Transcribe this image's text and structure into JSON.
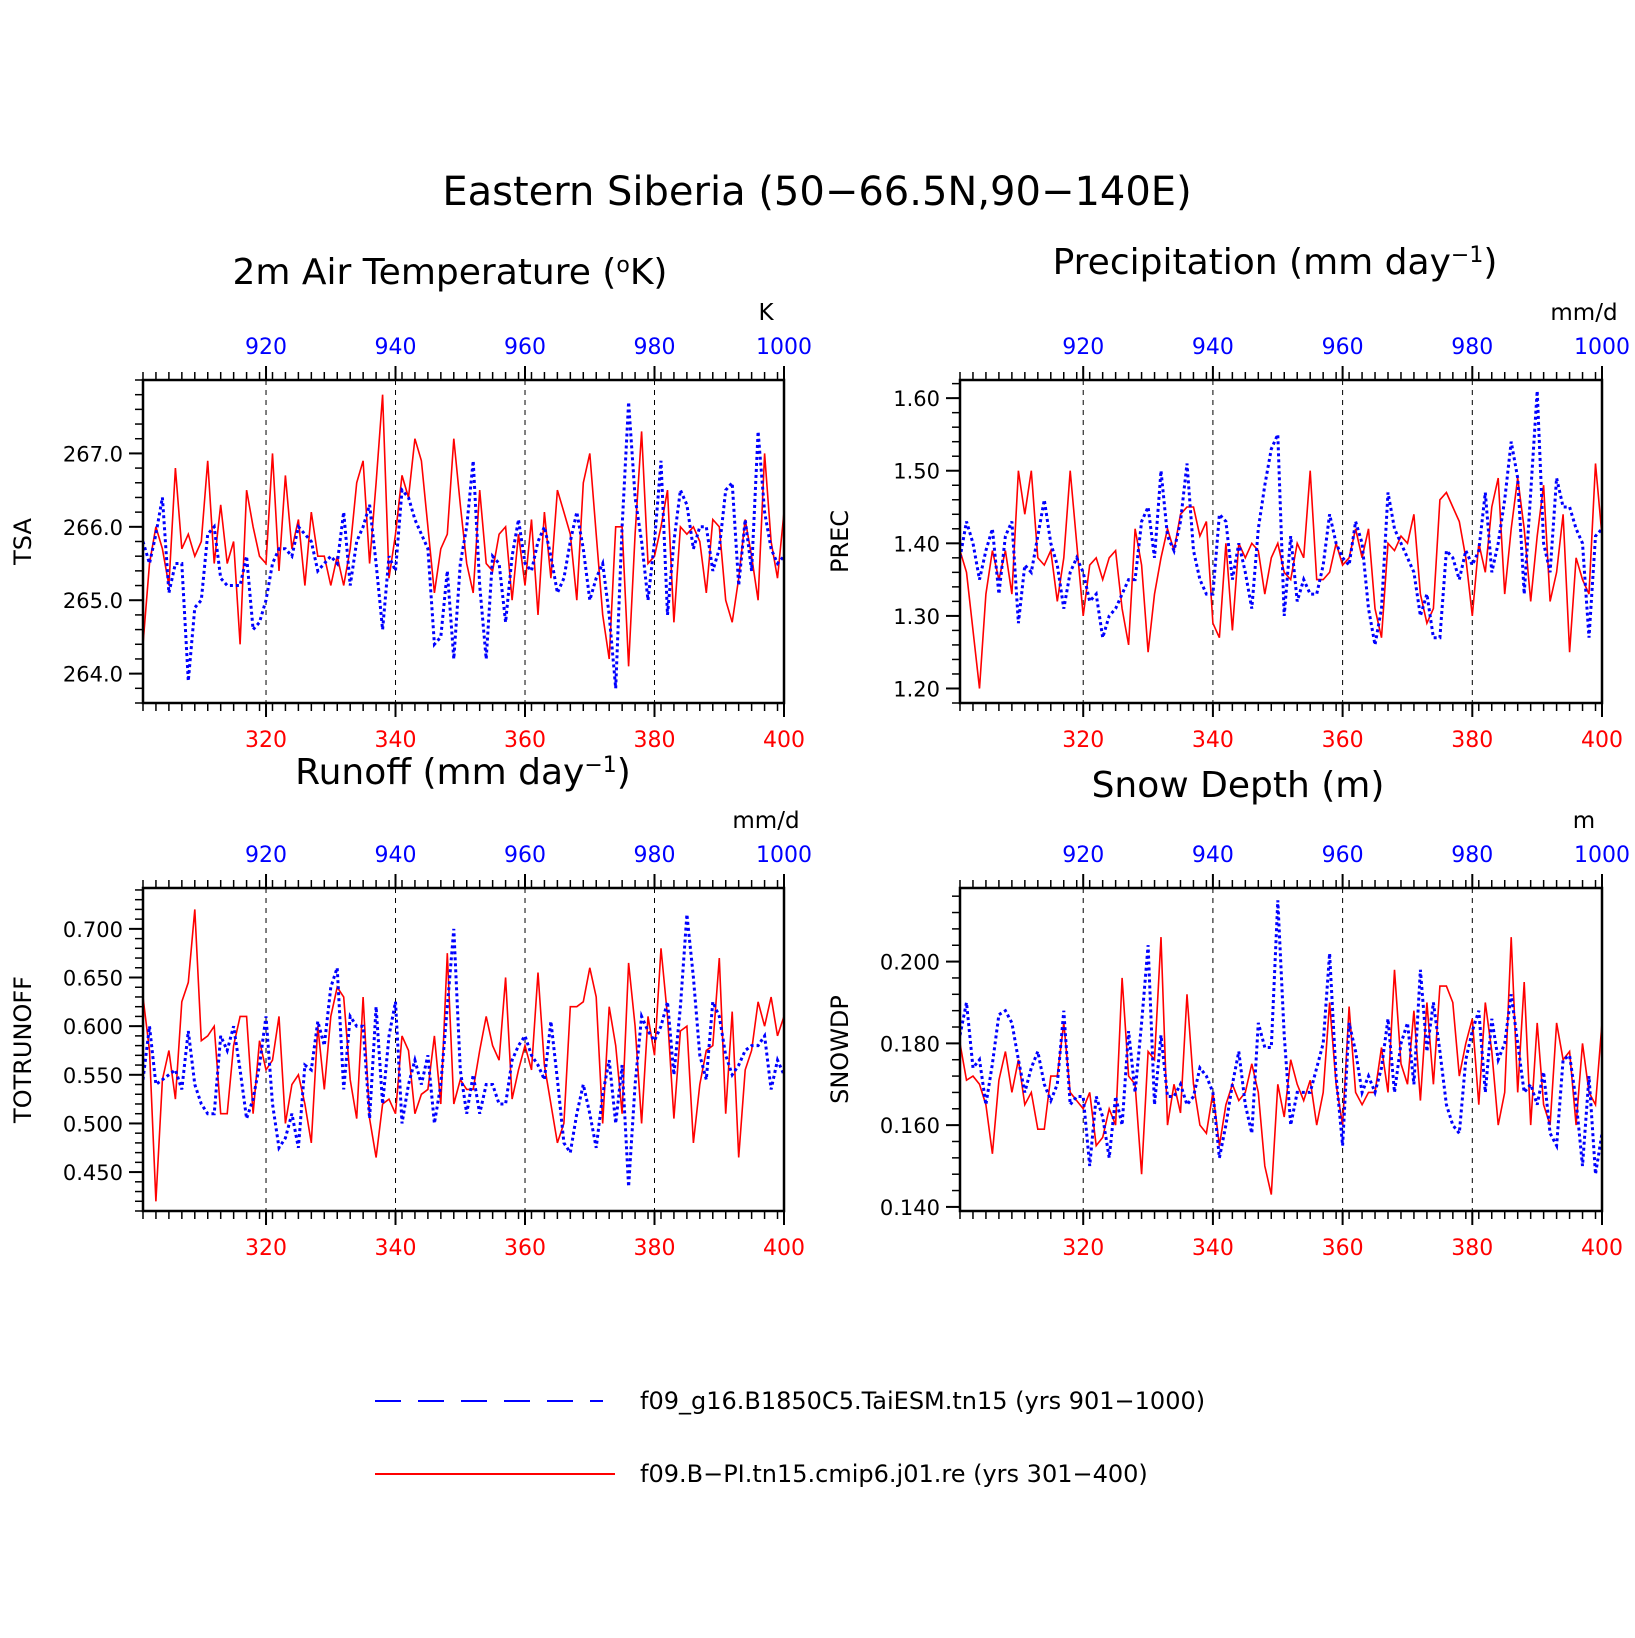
{
  "title": "Eastern Siberia (50−66.5N,90−140E)",
  "colors": {
    "blue": "#0000ff",
    "red": "#ff0000"
  },
  "legend": [
    {
      "label": "f09_g16.B1850C5.TaiESM.tn15 (yrs 901−1000)",
      "color": "#0000ff",
      "style": "dashed"
    },
    {
      "label": "f09.B−PI.tn15.cmip6.j01.re (yrs 301−400)",
      "color": "#ff0000",
      "style": "solid"
    }
  ],
  "chart_data": [
    {
      "type": "line",
      "title_text": "2m Air Temperature (°K)",
      "title_parts": {
        "pre": "2m Air Temperature (",
        "sup": "o",
        "post": "K)"
      },
      "units": "K",
      "ylabel": "TSA",
      "ylim": [
        263.6,
        268.0
      ],
      "yticks": [
        "264.0",
        "265.0",
        "266.0",
        "267.0"
      ],
      "x_bottom": {
        "ticks": [
          "320",
          "340",
          "360",
          "380",
          "400"
        ],
        "range": [
          301,
          400
        ]
      },
      "x_top": {
        "ticks": [
          "920",
          "940",
          "960",
          "980",
          "1000"
        ],
        "range": [
          901,
          1000
        ]
      },
      "series": [
        {
          "color": "#0000ff",
          "values": [
            265.8,
            265.5,
            265.9,
            266.4,
            265.1,
            265.5,
            265.5,
            263.9,
            264.9,
            265.0,
            265.9,
            266.0,
            265.3,
            265.2,
            265.2,
            265.2,
            265.6,
            264.6,
            264.7,
            265.0,
            265.5,
            265.7,
            265.7,
            265.6,
            266.0,
            265.9,
            265.8,
            265.4,
            265.5,
            265.6,
            265.5,
            266.2,
            265.2,
            265.8,
            266.0,
            266.3,
            265.5,
            264.6,
            265.6,
            265.4,
            266.5,
            266.4,
            266.1,
            265.9,
            265.7,
            264.4,
            264.5,
            265.4,
            264.2,
            265.5,
            266.0,
            266.9,
            265.2,
            264.2,
            265.6,
            265.5,
            264.7,
            265.6,
            266.1,
            265.5,
            265.4,
            265.8,
            266.0,
            265.6,
            265.1,
            265.3,
            265.8,
            266.2,
            265.7,
            265.0,
            265.3,
            265.5,
            264.8,
            263.8,
            266.0,
            267.7,
            266.4,
            265.8,
            265.0,
            265.8,
            266.9,
            264.8,
            265.8,
            266.5,
            266.3,
            265.7,
            266.0,
            266.0,
            265.4,
            265.7,
            266.5,
            266.6,
            265.2,
            266.1,
            265.4,
            267.3,
            266.2,
            265.7,
            265.5,
            265.6
          ]
        },
        {
          "color": "#ff0000",
          "values": [
            264.4,
            265.5,
            266.0,
            265.7,
            265.2,
            266.8,
            265.7,
            265.9,
            265.6,
            265.8,
            266.9,
            265.5,
            266.3,
            265.5,
            265.8,
            264.4,
            266.5,
            266.0,
            265.6,
            265.5,
            267.0,
            265.4,
            266.7,
            265.7,
            266.1,
            265.2,
            266.2,
            265.6,
            265.6,
            265.2,
            265.6,
            265.2,
            265.7,
            266.6,
            266.9,
            265.5,
            266.6,
            267.8,
            265.3,
            265.9,
            266.7,
            266.4,
            267.2,
            266.9,
            266.0,
            265.1,
            265.7,
            265.9,
            267.2,
            266.3,
            265.5,
            265.1,
            266.5,
            265.5,
            265.4,
            265.9,
            266.0,
            265.0,
            265.9,
            265.2,
            266.1,
            264.8,
            266.2,
            265.3,
            266.5,
            266.2,
            265.9,
            265.0,
            266.6,
            267.0,
            265.9,
            264.8,
            264.2,
            266.0,
            266.0,
            264.1,
            265.9,
            267.3,
            265.5,
            265.6,
            266.0,
            266.5,
            264.7,
            266.0,
            265.9,
            266.0,
            265.8,
            265.1,
            266.1,
            266.0,
            265.0,
            264.7,
            265.3,
            266.1,
            265.6,
            265.0,
            267.0,
            265.8,
            265.3,
            266.2
          ]
        }
      ]
    },
    {
      "type": "line",
      "title_text": "Precipitation (mm day⁻¹)",
      "title_parts": {
        "pre": "Precipitation (mm day",
        "sup": "−1",
        "post": ")"
      },
      "units": "mm/d",
      "ylabel": "PREC",
      "ylim": [
        1.18,
        1.625
      ],
      "yticks": [
        "1.20",
        "1.30",
        "1.40",
        "1.50",
        "1.60"
      ],
      "x_bottom": {
        "ticks": [
          "320",
          "340",
          "360",
          "380",
          "400"
        ],
        "range": [
          301,
          400
        ]
      },
      "x_top": {
        "ticks": [
          "920",
          "940",
          "960",
          "980",
          "1000"
        ],
        "range": [
          901,
          1000
        ]
      },
      "series": [
        {
          "color": "#0000ff",
          "values": [
            1.38,
            1.43,
            1.4,
            1.35,
            1.39,
            1.42,
            1.33,
            1.41,
            1.43,
            1.29,
            1.37,
            1.36,
            1.41,
            1.46,
            1.4,
            1.37,
            1.31,
            1.36,
            1.38,
            1.36,
            1.32,
            1.33,
            1.27,
            1.3,
            1.31,
            1.33,
            1.35,
            1.35,
            1.43,
            1.45,
            1.38,
            1.5,
            1.41,
            1.39,
            1.43,
            1.51,
            1.39,
            1.35,
            1.33,
            1.33,
            1.44,
            1.43,
            1.35,
            1.4,
            1.36,
            1.31,
            1.42,
            1.48,
            1.53,
            1.55,
            1.3,
            1.41,
            1.32,
            1.35,
            1.33,
            1.33,
            1.37,
            1.44,
            1.4,
            1.38,
            1.37,
            1.43,
            1.4,
            1.31,
            1.26,
            1.31,
            1.47,
            1.42,
            1.4,
            1.38,
            1.36,
            1.3,
            1.33,
            1.27,
            1.27,
            1.39,
            1.38,
            1.35,
            1.39,
            1.37,
            1.39,
            1.47,
            1.36,
            1.4,
            1.46,
            1.54,
            1.49,
            1.33,
            1.47,
            1.61,
            1.4,
            1.36,
            1.49,
            1.45,
            1.45,
            1.42,
            1.4,
            1.27,
            1.41,
            1.42
          ]
        },
        {
          "color": "#ff0000",
          "values": [
            1.39,
            1.36,
            1.28,
            1.2,
            1.33,
            1.39,
            1.35,
            1.39,
            1.33,
            1.5,
            1.44,
            1.5,
            1.38,
            1.37,
            1.39,
            1.32,
            1.38,
            1.5,
            1.4,
            1.3,
            1.37,
            1.38,
            1.35,
            1.38,
            1.39,
            1.31,
            1.26,
            1.42,
            1.37,
            1.25,
            1.33,
            1.38,
            1.42,
            1.39,
            1.44,
            1.45,
            1.45,
            1.41,
            1.43,
            1.29,
            1.27,
            1.4,
            1.28,
            1.4,
            1.38,
            1.4,
            1.39,
            1.33,
            1.38,
            1.4,
            1.36,
            1.35,
            1.4,
            1.38,
            1.5,
            1.35,
            1.35,
            1.36,
            1.4,
            1.37,
            1.38,
            1.42,
            1.38,
            1.42,
            1.31,
            1.27,
            1.4,
            1.39,
            1.41,
            1.4,
            1.44,
            1.33,
            1.29,
            1.31,
            1.46,
            1.47,
            1.45,
            1.43,
            1.38,
            1.3,
            1.4,
            1.36,
            1.45,
            1.49,
            1.33,
            1.42,
            1.49,
            1.42,
            1.32,
            1.41,
            1.48,
            1.32,
            1.36,
            1.44,
            1.25,
            1.38,
            1.35,
            1.33,
            1.51,
            1.41
          ]
        }
      ]
    },
    {
      "type": "line",
      "title_text": "Runoff (mm day⁻¹)",
      "title_parts": {
        "pre": "Runoff (mm day",
        "sup": "−1",
        "post": ")"
      },
      "units": "mm/d",
      "ylabel": "TOTRUNOFF",
      "ylim": [
        0.41,
        0.742
      ],
      "yticks": [
        "0.450",
        "0.500",
        "0.550",
        "0.600",
        "0.650",
        "0.700"
      ],
      "x_bottom": {
        "ticks": [
          "320",
          "340",
          "360",
          "380",
          "400"
        ],
        "range": [
          301,
          400
        ]
      },
      "x_top": {
        "ticks": [
          "920",
          "940",
          "960",
          "980",
          "1000"
        ],
        "range": [
          901,
          1000
        ]
      },
      "series": [
        {
          "color": "#0000ff",
          "values": [
            0.545,
            0.6,
            0.54,
            0.545,
            0.55,
            0.555,
            0.535,
            0.595,
            0.54,
            0.52,
            0.51,
            0.51,
            0.59,
            0.575,
            0.6,
            0.555,
            0.505,
            0.525,
            0.56,
            0.61,
            0.52,
            0.475,
            0.485,
            0.51,
            0.475,
            0.56,
            0.555,
            0.605,
            0.58,
            0.64,
            0.66,
            0.535,
            0.61,
            0.6,
            0.6,
            0.505,
            0.62,
            0.52,
            0.59,
            0.625,
            0.5,
            0.54,
            0.565,
            0.54,
            0.57,
            0.5,
            0.54,
            0.62,
            0.7,
            0.555,
            0.51,
            0.55,
            0.51,
            0.54,
            0.54,
            0.52,
            0.52,
            0.565,
            0.58,
            0.59,
            0.57,
            0.56,
            0.545,
            0.605,
            0.545,
            0.48,
            0.47,
            0.51,
            0.54,
            0.51,
            0.475,
            0.53,
            0.565,
            0.5,
            0.56,
            0.435,
            0.54,
            0.61,
            0.595,
            0.585,
            0.6,
            0.625,
            0.55,
            0.62,
            0.715,
            0.65,
            0.57,
            0.545,
            0.625,
            0.61,
            0.57,
            0.55,
            0.56,
            0.575,
            0.58,
            0.58,
            0.59,
            0.535,
            0.565,
            0.55
          ]
        },
        {
          "color": "#ff0000",
          "values": [
            0.63,
            0.575,
            0.42,
            0.545,
            0.575,
            0.525,
            0.625,
            0.645,
            0.72,
            0.585,
            0.59,
            0.6,
            0.51,
            0.51,
            0.58,
            0.61,
            0.61,
            0.51,
            0.585,
            0.555,
            0.565,
            0.61,
            0.5,
            0.54,
            0.55,
            0.52,
            0.48,
            0.6,
            0.535,
            0.61,
            0.64,
            0.63,
            0.545,
            0.505,
            0.63,
            0.505,
            0.465,
            0.52,
            0.525,
            0.51,
            0.59,
            0.575,
            0.51,
            0.53,
            0.535,
            0.59,
            0.52,
            0.675,
            0.52,
            0.545,
            0.535,
            0.535,
            0.575,
            0.61,
            0.58,
            0.565,
            0.65,
            0.525,
            0.555,
            0.58,
            0.555,
            0.655,
            0.56,
            0.52,
            0.48,
            0.5,
            0.62,
            0.62,
            0.625,
            0.66,
            0.63,
            0.5,
            0.62,
            0.58,
            0.51,
            0.665,
            0.6,
            0.5,
            0.61,
            0.57,
            0.68,
            0.61,
            0.505,
            0.595,
            0.6,
            0.48,
            0.54,
            0.575,
            0.58,
            0.67,
            0.51,
            0.615,
            0.465,
            0.555,
            0.575,
            0.625,
            0.6,
            0.63,
            0.59,
            0.61
          ]
        }
      ]
    },
    {
      "type": "line",
      "title_text": "Snow Depth (m)",
      "title_parts": {
        "pre": "Snow Depth (m)",
        "sup": "",
        "post": ""
      },
      "units": "m",
      "ylabel": "SNOWDP",
      "ylim": [
        0.139,
        0.218
      ],
      "yticks": [
        "0.140",
        "0.160",
        "0.180",
        "0.200"
      ],
      "x_bottom": {
        "ticks": [
          "320",
          "340",
          "360",
          "380",
          "400"
        ],
        "range": [
          301,
          400
        ]
      },
      "x_top": {
        "ticks": [
          "920",
          "940",
          "960",
          "980",
          "1000"
        ],
        "range": [
          901,
          1000
        ]
      },
      "series": [
        {
          "color": "#0000ff",
          "values": [
            0.182,
            0.19,
            0.174,
            0.176,
            0.165,
            0.175,
            0.187,
            0.188,
            0.185,
            0.176,
            0.168,
            0.174,
            0.178,
            0.17,
            0.166,
            0.17,
            0.188,
            0.165,
            0.167,
            0.167,
            0.15,
            0.167,
            0.162,
            0.152,
            0.167,
            0.16,
            0.183,
            0.168,
            0.185,
            0.204,
            0.165,
            0.182,
            0.167,
            0.167,
            0.17,
            0.165,
            0.167,
            0.174,
            0.172,
            0.168,
            0.152,
            0.16,
            0.17,
            0.178,
            0.165,
            0.158,
            0.185,
            0.179,
            0.179,
            0.215,
            0.182,
            0.16,
            0.168,
            0.168,
            0.168,
            0.174,
            0.18,
            0.202,
            0.172,
            0.155,
            0.185,
            0.178,
            0.168,
            0.172,
            0.168,
            0.174,
            0.186,
            0.168,
            0.18,
            0.185,
            0.17,
            0.198,
            0.178,
            0.19,
            0.178,
            0.165,
            0.16,
            0.158,
            0.176,
            0.183,
            0.188,
            0.168,
            0.186,
            0.176,
            0.18,
            0.192,
            0.18,
            0.168,
            0.17,
            0.165,
            0.173,
            0.158,
            0.155,
            0.176,
            0.177,
            0.166,
            0.15,
            0.172,
            0.148,
            0.158
          ]
        },
        {
          "color": "#ff0000",
          "values": [
            0.18,
            0.171,
            0.172,
            0.17,
            0.165,
            0.153,
            0.171,
            0.178,
            0.168,
            0.176,
            0.165,
            0.168,
            0.159,
            0.159,
            0.172,
            0.172,
            0.185,
            0.168,
            0.166,
            0.164,
            0.168,
            0.155,
            0.157,
            0.164,
            0.16,
            0.196,
            0.172,
            0.17,
            0.148,
            0.178,
            0.176,
            0.206,
            0.16,
            0.17,
            0.163,
            0.192,
            0.17,
            0.16,
            0.158,
            0.168,
            0.155,
            0.165,
            0.17,
            0.166,
            0.168,
            0.175,
            0.168,
            0.15,
            0.143,
            0.17,
            0.162,
            0.176,
            0.17,
            0.166,
            0.171,
            0.16,
            0.168,
            0.19,
            0.17,
            0.16,
            0.189,
            0.168,
            0.165,
            0.168,
            0.168,
            0.179,
            0.168,
            0.198,
            0.175,
            0.17,
            0.188,
            0.166,
            0.19,
            0.17,
            0.194,
            0.194,
            0.19,
            0.172,
            0.18,
            0.186,
            0.165,
            0.19,
            0.178,
            0.16,
            0.168,
            0.206,
            0.168,
            0.195,
            0.16,
            0.185,
            0.165,
            0.16,
            0.185,
            0.176,
            0.178,
            0.16,
            0.18,
            0.168,
            0.165,
            0.185
          ]
        }
      ]
    }
  ]
}
